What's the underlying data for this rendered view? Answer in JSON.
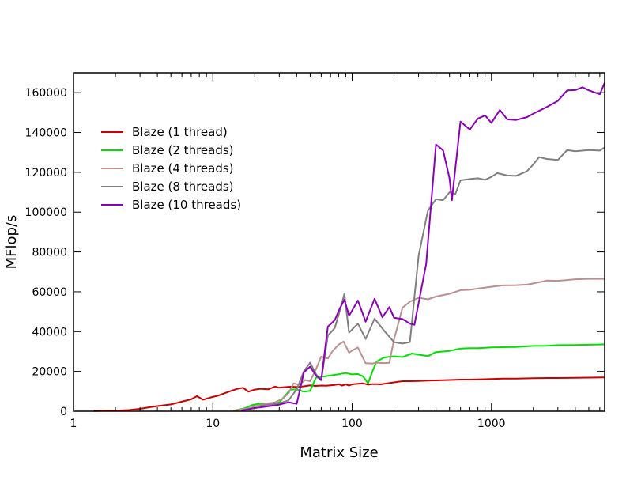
{
  "chart_data": {
    "type": "line",
    "title": "",
    "xlabel": "Matrix Size",
    "ylabel": "MFlop/s",
    "x_scale": "log",
    "xlim": [
      1,
      6500
    ],
    "ylim": [
      0,
      170000
    ],
    "x_ticks": [
      {
        "value": 1,
        "label": "1"
      },
      {
        "value": 10,
        "label": "10"
      },
      {
        "value": 100,
        "label": "100"
      },
      {
        "value": 1000,
        "label": "1000"
      }
    ],
    "y_ticks": [
      {
        "value": 0,
        "label": "0"
      },
      {
        "value": 20000,
        "label": "20000"
      },
      {
        "value": 40000,
        "label": "40000"
      },
      {
        "value": 60000,
        "label": "60000"
      },
      {
        "value": 80000,
        "label": "80000"
      },
      {
        "value": 100000,
        "label": "100000"
      },
      {
        "value": 120000,
        "label": "120000"
      },
      {
        "value": 140000,
        "label": "140000"
      },
      {
        "value": 160000,
        "label": "160000"
      }
    ],
    "grid": false,
    "legend_position": "top-left",
    "series": [
      {
        "name": "Blaze (1 thread)",
        "color": "#cc0000",
        "points": [
          [
            1.4,
            100
          ],
          [
            2,
            300
          ],
          [
            2.5,
            600
          ],
          [
            3,
            1200
          ],
          [
            3.5,
            2000
          ],
          [
            4,
            2600
          ],
          [
            5,
            3400
          ],
          [
            6,
            4800
          ],
          [
            7,
            6000
          ],
          [
            7.7,
            7600
          ],
          [
            8.5,
            5800
          ],
          [
            9.5,
            6800
          ],
          [
            11,
            7900
          ],
          [
            13,
            9800
          ],
          [
            15,
            11300
          ],
          [
            16.5,
            11800
          ],
          [
            18,
            9800
          ],
          [
            20,
            10900
          ],
          [
            22,
            11300
          ],
          [
            25,
            11000
          ],
          [
            28,
            12400
          ],
          [
            30,
            11800
          ],
          [
            33,
            12100
          ],
          [
            36,
            12300
          ],
          [
            40,
            12200
          ],
          [
            45,
            12500
          ],
          [
            50,
            13000
          ],
          [
            55,
            12700
          ],
          [
            60,
            12900
          ],
          [
            65,
            12800
          ],
          [
            70,
            13000
          ],
          [
            75,
            13200
          ],
          [
            80,
            13600
          ],
          [
            85,
            12900
          ],
          [
            90,
            13500
          ],
          [
            95,
            12900
          ],
          [
            100,
            13500
          ],
          [
            110,
            13800
          ],
          [
            120,
            14000
          ],
          [
            130,
            13400
          ],
          [
            140,
            13600
          ],
          [
            150,
            13600
          ],
          [
            160,
            13500
          ],
          [
            175,
            13900
          ],
          [
            200,
            14500
          ],
          [
            230,
            15100
          ],
          [
            260,
            15100
          ],
          [
            300,
            15200
          ],
          [
            350,
            15400
          ],
          [
            400,
            15500
          ],
          [
            500,
            15700
          ],
          [
            600,
            15900
          ],
          [
            700,
            15900
          ],
          [
            800,
            16000
          ],
          [
            1000,
            16200
          ],
          [
            1200,
            16400
          ],
          [
            1500,
            16400
          ],
          [
            2000,
            16600
          ],
          [
            2500,
            16700
          ],
          [
            3000,
            16700
          ],
          [
            4000,
            16800
          ],
          [
            5000,
            16900
          ],
          [
            6500,
            17000
          ]
        ]
      },
      {
        "name": "Blaze (2 threads)",
        "color": "#00e000",
        "points": [
          [
            14,
            200
          ],
          [
            17,
            1500
          ],
          [
            19,
            3000
          ],
          [
            21,
            3600
          ],
          [
            23,
            3800
          ],
          [
            25,
            3600
          ],
          [
            27,
            3800
          ],
          [
            30,
            4400
          ],
          [
            33,
            7800
          ],
          [
            36,
            10800
          ],
          [
            40,
            11000
          ],
          [
            45,
            9800
          ],
          [
            50,
            10200
          ],
          [
            55,
            16800
          ],
          [
            60,
            17300
          ],
          [
            65,
            17600
          ],
          [
            70,
            18000
          ],
          [
            80,
            18600
          ],
          [
            90,
            19200
          ],
          [
            100,
            18500
          ],
          [
            110,
            18700
          ],
          [
            120,
            17500
          ],
          [
            130,
            14000
          ],
          [
            140,
            20000
          ],
          [
            150,
            25000
          ],
          [
            170,
            27000
          ],
          [
            200,
            27600
          ],
          [
            230,
            27200
          ],
          [
            270,
            29000
          ],
          [
            300,
            28400
          ],
          [
            350,
            27700
          ],
          [
            400,
            29700
          ],
          [
            500,
            30300
          ],
          [
            600,
            31500
          ],
          [
            700,
            31700
          ],
          [
            800,
            31700
          ],
          [
            1000,
            32100
          ],
          [
            1500,
            32300
          ],
          [
            2000,
            32800
          ],
          [
            2500,
            32900
          ],
          [
            3000,
            33200
          ],
          [
            4000,
            33300
          ],
          [
            5000,
            33400
          ],
          [
            6500,
            33600
          ]
        ]
      },
      {
        "name": "Blaze (4 threads)",
        "color": "#bc8f8f",
        "points": [
          [
            14,
            300
          ],
          [
            18,
            1400
          ],
          [
            21,
            2800
          ],
          [
            24,
            3800
          ],
          [
            28,
            4500
          ],
          [
            32,
            6500
          ],
          [
            35,
            9000
          ],
          [
            38,
            14000
          ],
          [
            42,
            13300
          ],
          [
            46,
            15700
          ],
          [
            50,
            15100
          ],
          [
            55,
            21000
          ],
          [
            60,
            27500
          ],
          [
            67,
            26500
          ],
          [
            72,
            30000
          ],
          [
            80,
            33500
          ],
          [
            87,
            35000
          ],
          [
            95,
            29400
          ],
          [
            100,
            30500
          ],
          [
            110,
            32000
          ],
          [
            125,
            24100
          ],
          [
            140,
            24000
          ],
          [
            150,
            24400
          ],
          [
            170,
            24200
          ],
          [
            185,
            24300
          ],
          [
            200,
            36000
          ],
          [
            230,
            52000
          ],
          [
            260,
            55000
          ],
          [
            300,
            57000
          ],
          [
            350,
            56200
          ],
          [
            400,
            57600
          ],
          [
            500,
            59000
          ],
          [
            600,
            60800
          ],
          [
            700,
            61000
          ],
          [
            800,
            61600
          ],
          [
            1000,
            62500
          ],
          [
            1200,
            63200
          ],
          [
            1500,
            63300
          ],
          [
            1800,
            63600
          ],
          [
            2000,
            64200
          ],
          [
            2500,
            65600
          ],
          [
            3000,
            65500
          ],
          [
            4000,
            66300
          ],
          [
            5000,
            66500
          ],
          [
            6500,
            66500
          ]
        ]
      },
      {
        "name": "Blaze (8 threads)",
        "color": "#808080",
        "points": [
          [
            22,
            2800
          ],
          [
            30,
            4000
          ],
          [
            35,
            5500
          ],
          [
            40,
            11000
          ],
          [
            45,
            20000
          ],
          [
            50,
            24400
          ],
          [
            55,
            18700
          ],
          [
            60,
            15600
          ],
          [
            67,
            38000
          ],
          [
            75,
            41800
          ],
          [
            82,
            51000
          ],
          [
            88,
            59000
          ],
          [
            95,
            39500
          ],
          [
            110,
            44000
          ],
          [
            125,
            36300
          ],
          [
            145,
            46500
          ],
          [
            170,
            40400
          ],
          [
            200,
            34700
          ],
          [
            230,
            34000
          ],
          [
            260,
            34700
          ],
          [
            300,
            78000
          ],
          [
            350,
            100800
          ],
          [
            400,
            106500
          ],
          [
            450,
            106000
          ],
          [
            500,
            110000
          ],
          [
            550,
            109000
          ],
          [
            600,
            116000
          ],
          [
            700,
            116600
          ],
          [
            800,
            117000
          ],
          [
            900,
            116200
          ],
          [
            1000,
            117700
          ],
          [
            1100,
            119600
          ],
          [
            1300,
            118400
          ],
          [
            1500,
            118200
          ],
          [
            1800,
            120500
          ],
          [
            2000,
            124000
          ],
          [
            2200,
            127600
          ],
          [
            2500,
            126700
          ],
          [
            3000,
            126200
          ],
          [
            3500,
            131200
          ],
          [
            4000,
            130600
          ],
          [
            5000,
            131200
          ],
          [
            6000,
            130900
          ],
          [
            6500,
            132500
          ]
        ]
      },
      {
        "name": "Blaze (10 threads)",
        "color": "#8b00b8",
        "points": [
          [
            16,
            300
          ],
          [
            20,
            1600
          ],
          [
            25,
            2500
          ],
          [
            30,
            3300
          ],
          [
            35,
            4500
          ],
          [
            40,
            3700
          ],
          [
            45,
            19500
          ],
          [
            50,
            22400
          ],
          [
            55,
            18000
          ],
          [
            60,
            15600
          ],
          [
            67,
            42500
          ],
          [
            75,
            45700
          ],
          [
            82,
            52000
          ],
          [
            88,
            56000
          ],
          [
            95,
            48000
          ],
          [
            110,
            55600
          ],
          [
            125,
            45000
          ],
          [
            145,
            56500
          ],
          [
            165,
            47200
          ],
          [
            185,
            52300
          ],
          [
            200,
            47000
          ],
          [
            230,
            46300
          ],
          [
            260,
            44000
          ],
          [
            280,
            43400
          ],
          [
            340,
            74000
          ],
          [
            400,
            134000
          ],
          [
            450,
            131000
          ],
          [
            500,
            117000
          ],
          [
            520,
            106000
          ],
          [
            600,
            145500
          ],
          [
            700,
            141500
          ],
          [
            800,
            147000
          ],
          [
            900,
            148600
          ],
          [
            1000,
            144800
          ],
          [
            1150,
            151300
          ],
          [
            1300,
            146600
          ],
          [
            1500,
            146300
          ],
          [
            1800,
            147700
          ],
          [
            2000,
            149500
          ],
          [
            2500,
            152800
          ],
          [
            3000,
            155900
          ],
          [
            3500,
            161200
          ],
          [
            4000,
            161300
          ],
          [
            4500,
            162700
          ],
          [
            5000,
            161200
          ],
          [
            6000,
            159200
          ],
          [
            6500,
            165000
          ]
        ]
      }
    ]
  }
}
